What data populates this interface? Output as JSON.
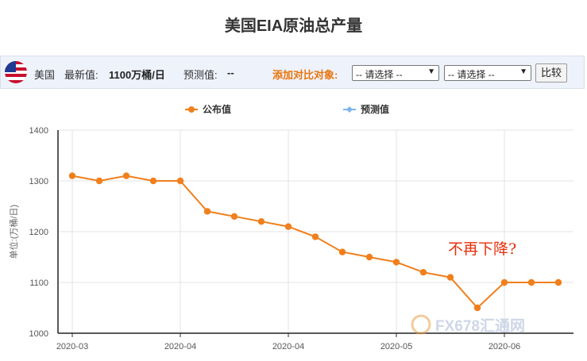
{
  "header": {
    "title": "美国EIA原油总产量"
  },
  "toolbar": {
    "country": "美国",
    "latest_label": "最新值:",
    "latest_value": "1100万桶/日",
    "forecast_label": "预测值:",
    "forecast_value": "--",
    "compare_label": "添加对比对象:",
    "select1_value": "-- 请选择 --",
    "select2_value": "-- 请选择 --",
    "compare_button": "比较",
    "flag_icon": "us-flag-icon"
  },
  "chart_data": {
    "type": "line",
    "ylabel": "单位:(万桶/日)",
    "ylim": [
      1000,
      1400
    ],
    "yticks": [
      1000,
      1100,
      1200,
      1300,
      1400
    ],
    "xticks": [
      {
        "label": "2020-03",
        "pos": 0
      },
      {
        "label": "2020-04",
        "pos": 4
      },
      {
        "label": "2020-04",
        "pos": 8
      },
      {
        "label": "2020-05",
        "pos": 12
      },
      {
        "label": "2020-06",
        "pos": 16
      }
    ],
    "legend": [
      {
        "name": "公布值",
        "color": "#f07f1c"
      },
      {
        "name": "预测值",
        "color": "#7cb5ec"
      }
    ],
    "series": [
      {
        "name": "公布值",
        "color": "#f07f1c",
        "values": [
          1310,
          1300,
          1310,
          1300,
          1300,
          1240,
          1230,
          1220,
          1210,
          1190,
          1160,
          1150,
          1140,
          1120,
          1110,
          1050,
          1100,
          1100,
          1100
        ]
      }
    ],
    "annotation": "不再下降?",
    "grid": true
  },
  "watermark": {
    "text": "FX678汇通网"
  }
}
